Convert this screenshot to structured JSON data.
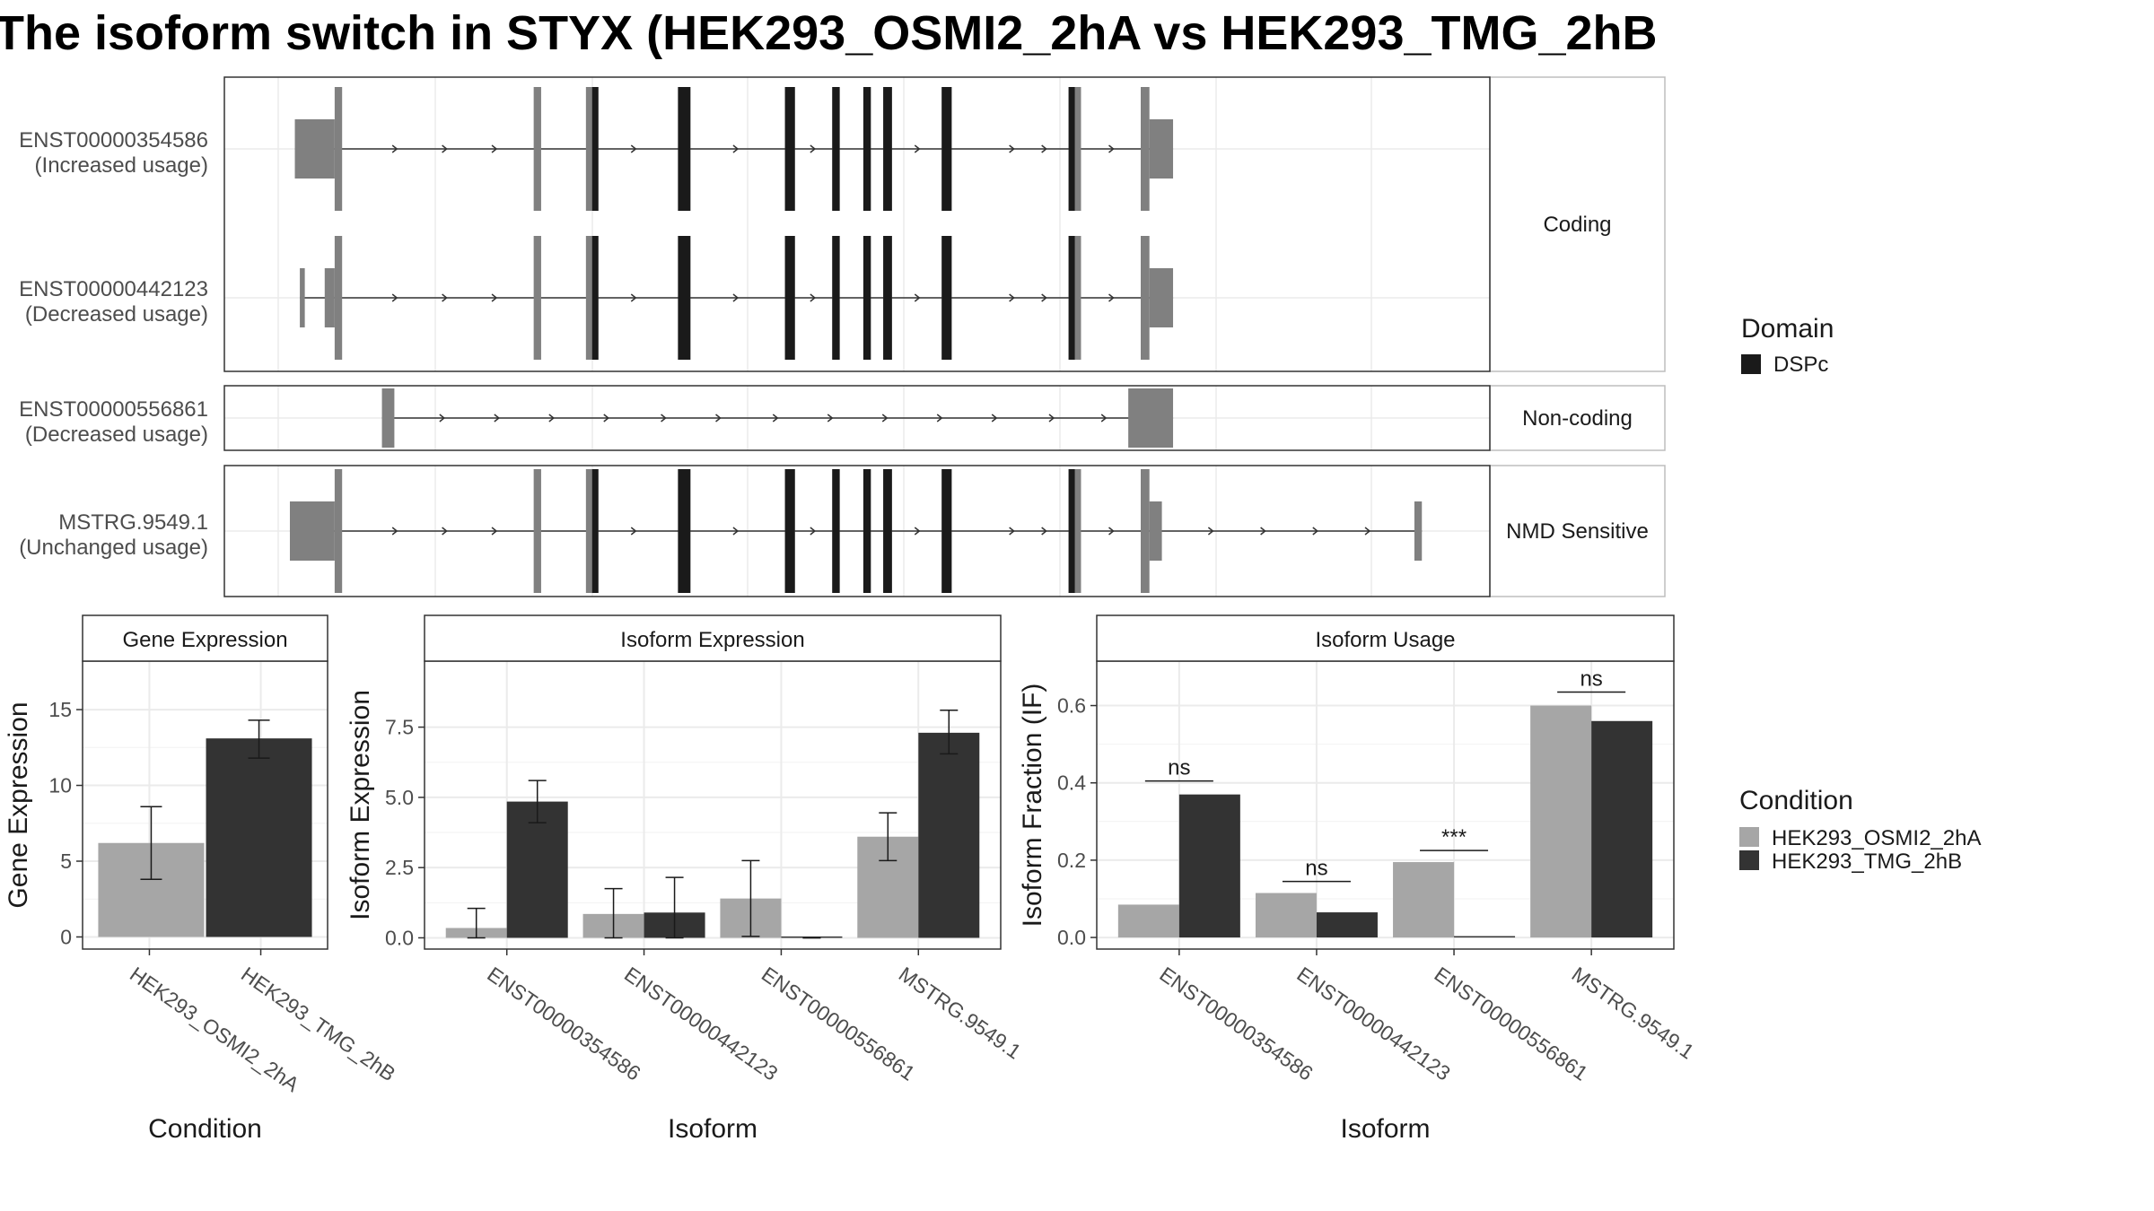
{
  "title": "The isoform switch in STYX (HEK293_OSMI2_2hA vs HEK293_TMG_2hB",
  "colors": {
    "exon": "#808080",
    "domain": "#1a1a1a",
    "condition_a": "#a6a6a6",
    "condition_b": "#333333",
    "grid": "#ebebeb",
    "strip_bg": "#ffffff"
  },
  "structure": {
    "coord_range": [
      0,
      1000
    ],
    "panels": [
      {
        "strip": "Coding",
        "transcripts": [
          {
            "name": "ENST00000354586",
            "label2": "(Increased usage)",
            "line": [
              48,
              754
            ],
            "exons": [
              [
                48,
                80,
                "utr"
              ],
              [
                80,
                86,
                "cds"
              ],
              [
                240,
                246,
                "cds"
              ],
              [
                282,
                292,
                "cds"
              ],
              [
                356,
                366,
                "cds"
              ],
              [
                442,
                450,
                "cds"
              ],
              [
                480,
                486,
                "cds"
              ],
              [
                505,
                511,
                "cds"
              ],
              [
                521,
                528,
                "cds"
              ],
              [
                568,
                576,
                "cds"
              ],
              [
                670,
                680,
                "cds"
              ],
              [
                728,
                735,
                "cds"
              ],
              [
                735,
                754,
                "utr"
              ]
            ],
            "domains": [
              [
                287,
                292
              ],
              [
                356,
                366
              ],
              [
                442,
                450
              ],
              [
                480,
                486
              ],
              [
                505,
                511
              ],
              [
                521,
                528
              ],
              [
                568,
                576
              ],
              [
                670,
                675
              ]
            ],
            "arrows": [
              130,
              170,
              210,
              322,
              404,
              466,
              550,
              626,
              652,
              706
            ]
          },
          {
            "name": "ENST00000442123",
            "label2": "(Decreased usage)",
            "line": [
              52,
              754
            ],
            "exons": [
              [
                52,
                56,
                "utr"
              ],
              [
                72,
                80,
                "utr"
              ],
              [
                80,
                86,
                "cds"
              ],
              [
                240,
                246,
                "cds"
              ],
              [
                282,
                292,
                "cds"
              ],
              [
                356,
                366,
                "cds"
              ],
              [
                442,
                450,
                "cds"
              ],
              [
                480,
                486,
                "cds"
              ],
              [
                505,
                511,
                "cds"
              ],
              [
                521,
                528,
                "cds"
              ],
              [
                568,
                576,
                "cds"
              ],
              [
                670,
                680,
                "cds"
              ],
              [
                728,
                735,
                "cds"
              ],
              [
                735,
                754,
                "utr"
              ]
            ],
            "domains": [
              [
                287,
                292
              ],
              [
                356,
                366
              ],
              [
                442,
                450
              ],
              [
                480,
                486
              ],
              [
                505,
                511
              ],
              [
                521,
                528
              ],
              [
                568,
                576
              ],
              [
                670,
                675
              ]
            ],
            "arrows": [
              130,
              170,
              210,
              322,
              404,
              466,
              550,
              626,
              652,
              706
            ]
          }
        ]
      },
      {
        "strip": "Non-coding",
        "transcripts": [
          {
            "name": "ENST00000556861",
            "label2": "(Decreased usage)",
            "line": [
              118,
              754
            ],
            "exons": [
              [
                118,
                128,
                "nc"
              ],
              [
                718,
                754,
                "nc"
              ]
            ],
            "domains": [],
            "arrows": [
              168,
              212,
              256,
              300,
              346,
              390,
              436,
              480,
              524,
              568,
              612,
              658,
              700
            ]
          }
        ]
      },
      {
        "strip": "NMD Sensitive",
        "transcripts": [
          {
            "name": "MSTRG.9549.1",
            "label2": "(Unchanged usage)",
            "line": [
              44,
              954
            ],
            "exons": [
              [
                44,
                80,
                "utr"
              ],
              [
                80,
                86,
                "cds"
              ],
              [
                240,
                246,
                "cds"
              ],
              [
                282,
                292,
                "cds"
              ],
              [
                356,
                366,
                "cds"
              ],
              [
                442,
                450,
                "cds"
              ],
              [
                480,
                486,
                "cds"
              ],
              [
                505,
                511,
                "cds"
              ],
              [
                521,
                528,
                "cds"
              ],
              [
                568,
                576,
                "cds"
              ],
              [
                670,
                680,
                "cds"
              ],
              [
                728,
                735,
                "cds"
              ],
              [
                735,
                745,
                "utr"
              ],
              [
                948,
                954,
                "utr"
              ]
            ],
            "domains": [
              [
                287,
                292
              ],
              [
                356,
                366
              ],
              [
                442,
                450
              ],
              [
                480,
                486
              ],
              [
                505,
                511
              ],
              [
                521,
                528
              ],
              [
                568,
                576
              ],
              [
                670,
                675
              ]
            ],
            "arrows": [
              130,
              170,
              210,
              322,
              404,
              466,
              550,
              626,
              652,
              706,
              786,
              828,
              870,
              912
            ]
          }
        ]
      }
    ]
  },
  "legend_domain": {
    "title": "Domain",
    "items": [
      "DSPc"
    ]
  },
  "legend_condition": {
    "title": "Condition",
    "items": [
      "HEK293_OSMI2_2hA",
      "HEK293_TMG_2hB"
    ]
  },
  "chart_data": [
    {
      "type": "bar",
      "strip": "Gene Expression",
      "xlabel": "Condition",
      "ylabel": "Gene Expression",
      "categories": [
        "HEK293_OSMI2_2hA",
        "HEK293_TMG_2hB"
      ],
      "values": [
        6.2,
        13.1
      ],
      "err_low": [
        3.8,
        11.8
      ],
      "err_high": [
        8.6,
        14.3
      ],
      "ylim": [
        -0.8,
        18.2
      ],
      "yticks": [
        0,
        5,
        10,
        15
      ],
      "ytick_labels": [
        "0",
        "5",
        "10",
        "15"
      ]
    },
    {
      "type": "bar",
      "strip": "Isoform Expression",
      "xlabel": "Isoform",
      "ylabel": "Isoform Expression",
      "categories": [
        "ENST00000354586",
        "ENST00000442123",
        "ENST00000556861",
        "MSTRG.9549.1"
      ],
      "series": [
        {
          "name": "HEK293_OSMI2_2hA",
          "values": [
            0.35,
            0.85,
            1.4,
            3.6
          ],
          "err_low": [
            0.0,
            0.0,
            0.05,
            2.75
          ],
          "err_high": [
            1.05,
            1.75,
            2.75,
            4.45
          ]
        },
        {
          "name": "HEK293_TMG_2hB",
          "values": [
            4.85,
            0.9,
            0.0,
            7.3
          ],
          "err_low": [
            4.1,
            0.0,
            0.0,
            6.55
          ],
          "err_high": [
            5.6,
            2.15,
            0.0,
            8.1
          ]
        }
      ],
      "ylim": [
        -0.4,
        9.85
      ],
      "yticks": [
        0,
        2.5,
        5,
        7.5
      ],
      "ytick_labels": [
        "0.0",
        "2.5",
        "5.0",
        "7.5"
      ]
    },
    {
      "type": "bar",
      "strip": "Isoform Usage",
      "xlabel": "Isoform",
      "ylabel": "Isoform Fraction (IF)",
      "categories": [
        "ENST00000354586",
        "ENST00000442123",
        "ENST00000556861",
        "MSTRG.9549.1"
      ],
      "series": [
        {
          "name": "HEK293_OSMI2_2hA",
          "values": [
            0.085,
            0.115,
            0.195,
            0.6
          ]
        },
        {
          "name": "HEK293_TMG_2hB",
          "values": [
            0.37,
            0.065,
            0.0,
            0.56
          ]
        }
      ],
      "significance": [
        "ns",
        "ns",
        "***",
        "ns"
      ],
      "sig_y": [
        0.405,
        0.145,
        0.225,
        0.635
      ],
      "ylim": [
        -0.03,
        0.715
      ],
      "yticks": [
        0,
        0.2,
        0.4,
        0.6
      ],
      "ytick_labels": [
        "0.0",
        "0.2",
        "0.4",
        "0.6"
      ]
    }
  ]
}
